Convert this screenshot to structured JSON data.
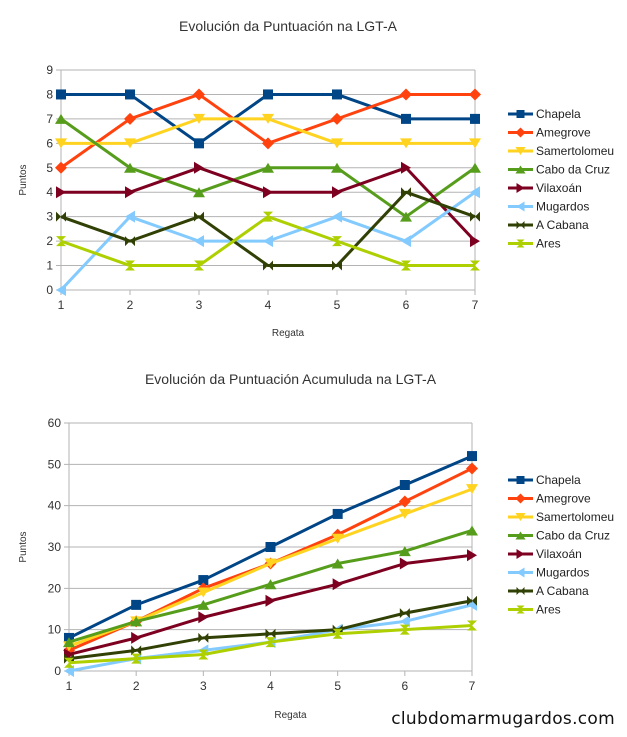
{
  "watermark": "clubdomarmugardos.com",
  "series_styles": [
    {
      "name": "Chapela",
      "color": "#004586",
      "marker": "square"
    },
    {
      "name": "Amegrove",
      "color": "#ff420e",
      "marker": "diamond"
    },
    {
      "name": "Samertolomeu",
      "color": "#ffd320",
      "marker": "triangle-down"
    },
    {
      "name": "Cabo da Cruz",
      "color": "#579d1c",
      "marker": "triangle-up"
    },
    {
      "name": "Vilaxoán",
      "color": "#7e0021",
      "marker": "triangle-right"
    },
    {
      "name": "Mugardos",
      "color": "#83caff",
      "marker": "triangle-left"
    },
    {
      "name": "A Cabana",
      "color": "#314004",
      "marker": "bowtie"
    },
    {
      "name": "Ares",
      "color": "#aecf00",
      "marker": "hourglass"
    }
  ],
  "chart_data": [
    {
      "type": "line",
      "title": "Evolución da Puntuación na LGT-A",
      "xlabel": "Regata",
      "ylabel": "Puntos",
      "categories": [
        "1",
        "2",
        "3",
        "4",
        "5",
        "6",
        "7"
      ],
      "ylim": [
        0,
        9
      ],
      "yticks": [
        0,
        1,
        2,
        3,
        4,
        5,
        6,
        7,
        8,
        9
      ],
      "grid": true,
      "legend": "right",
      "series": [
        {
          "name": "Chapela",
          "values": [
            8,
            8,
            6,
            8,
            8,
            7,
            7
          ]
        },
        {
          "name": "Amegrove",
          "values": [
            5,
            7,
            8,
            6,
            7,
            8,
            8
          ]
        },
        {
          "name": "Samertolomeu",
          "values": [
            6,
            6,
            7,
            7,
            6,
            6,
            6
          ]
        },
        {
          "name": "Cabo da Cruz",
          "values": [
            7,
            5,
            4,
            5,
            5,
            3,
            5
          ]
        },
        {
          "name": "Vilaxoán",
          "values": [
            4,
            4,
            5,
            4,
            4,
            5,
            2
          ]
        },
        {
          "name": "Mugardos",
          "values": [
            0,
            3,
            2,
            2,
            3,
            2,
            4
          ]
        },
        {
          "name": "A Cabana",
          "values": [
            3,
            2,
            3,
            1,
            1,
            4,
            3
          ]
        },
        {
          "name": "Ares",
          "values": [
            2,
            1,
            1,
            3,
            2,
            1,
            1
          ]
        }
      ]
    },
    {
      "type": "line",
      "title": "Evolución da Puntuación Acumuluda na LGT-A",
      "xlabel": "Regata",
      "ylabel": "Puntos",
      "categories": [
        "1",
        "2",
        "3",
        "4",
        "5",
        "6",
        "7"
      ],
      "ylim": [
        0,
        60
      ],
      "yticks": [
        0,
        10,
        20,
        30,
        40,
        50,
        60
      ],
      "grid": true,
      "legend": "right",
      "series": [
        {
          "name": "Chapela",
          "values": [
            8,
            16,
            22,
            30,
            38,
            45,
            52
          ]
        },
        {
          "name": "Amegrove",
          "values": [
            5,
            12,
            20,
            26,
            33,
            41,
            49
          ]
        },
        {
          "name": "Samertolomeu",
          "values": [
            6,
            12,
            19,
            26,
            32,
            38,
            44
          ]
        },
        {
          "name": "Cabo da Cruz",
          "values": [
            7,
            12,
            16,
            21,
            26,
            29,
            34
          ]
        },
        {
          "name": "Vilaxoán",
          "values": [
            4,
            8,
            13,
            17,
            21,
            26,
            28
          ]
        },
        {
          "name": "Mugardos",
          "values": [
            0,
            3,
            5,
            7,
            10,
            12,
            16
          ]
        },
        {
          "name": "A Cabana",
          "values": [
            3,
            5,
            8,
            9,
            10,
            14,
            17
          ]
        },
        {
          "name": "Ares",
          "values": [
            2,
            3,
            4,
            7,
            9,
            10,
            11
          ]
        }
      ]
    }
  ]
}
